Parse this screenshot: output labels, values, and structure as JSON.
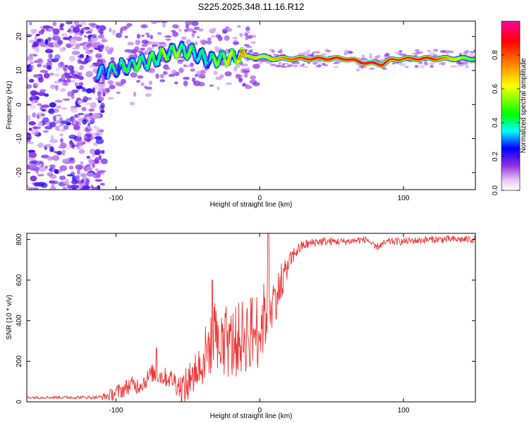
{
  "title": "S225.2025.348.11.16.R12",
  "chart_data": [
    {
      "type": "heatmap",
      "name": "spectrogram",
      "xlabel": "Height of straight line (km)",
      "ylabel": "Frequency (Hz)",
      "xlim": [
        -162,
        150
      ],
      "ylim": [
        -25,
        24.5
      ],
      "x_ticks": [
        -100,
        0,
        100
      ],
      "x_tick_labels": [
        "-100",
        "0",
        "100"
      ],
      "y_ticks": [
        -20,
        -10,
        0,
        10,
        20
      ],
      "y_tick_labels": [
        "-20",
        "-10",
        "0",
        "10",
        "20"
      ],
      "colorbar": {
        "label": "Normalized spectral amplitude",
        "range": [
          0,
          1
        ],
        "ticks": [
          0.0,
          0.2,
          0.4,
          0.6,
          0.8
        ],
        "tick_labels": [
          "0.0",
          "0.2",
          "0.4",
          "0.6",
          "0.8"
        ],
        "colors": [
          "#ffffff",
          "#e6c8f5",
          "#8a2be2",
          "#0000ff",
          "#00ffff",
          "#00ff00",
          "#ffff00",
          "#ff8000",
          "#ff0000",
          "#ff00a0"
        ]
      },
      "ridge": {
        "x": [
          -113,
          -105,
          -95,
          -85,
          -75,
          -65,
          -55,
          -45,
          -40,
          -35,
          -25,
          -15,
          -5,
          0,
          10,
          20,
          40,
          60,
          70,
          80,
          85,
          90,
          100,
          120,
          140,
          150
        ],
        "freq": [
          9,
          10,
          11,
          12,
          13,
          15,
          16,
          15,
          14,
          13,
          13.5,
          14,
          14,
          14,
          13.5,
          13.5,
          13.5,
          13.5,
          12.5,
          12,
          11.8,
          13,
          13.5,
          13.5,
          13.5,
          13.5
        ],
        "amplitude": [
          0.3,
          0.35,
          0.4,
          0.45,
          0.45,
          0.5,
          0.5,
          0.45,
          0.35,
          0.4,
          0.55,
          0.65,
          0.7,
          0.65,
          0.7,
          0.8,
          0.9,
          0.9,
          0.95,
          0.95,
          0.9,
          0.85,
          0.85,
          0.9,
          0.6,
          0.5
        ]
      },
      "noise_region_x": [
        -162,
        -112
      ],
      "noise_amplitude": 0.15
    },
    {
      "type": "line",
      "name": "snr",
      "xlabel": "Height of straight line (km)",
      "ylabel": "SNR (10 * v/v)",
      "xlim": [
        -162,
        150
      ],
      "ylim": [
        0,
        830
      ],
      "x_ticks": [
        -100,
        0,
        100
      ],
      "x_tick_labels": [
        "-100",
        "0",
        "100"
      ],
      "y_ticks": [
        0,
        200,
        400,
        600,
        800
      ],
      "y_tick_labels": [
        "0",
        "200",
        "400",
        "600",
        "800"
      ],
      "color": "#ee3333",
      "envelope": {
        "x": [
          -162,
          -112,
          -105,
          -95,
          -90,
          -85,
          -80,
          -75,
          -70,
          -60,
          -55,
          -50,
          -45,
          -40,
          -35,
          -30,
          -25,
          -20,
          -10,
          0,
          5,
          8,
          10,
          15,
          20,
          25,
          30,
          40,
          60,
          75,
          80,
          90,
          100,
          120,
          150
        ],
        "value": [
          22,
          22,
          30,
          60,
          85,
          80,
          100,
          140,
          130,
          110,
          70,
          80,
          150,
          200,
          280,
          250,
          300,
          280,
          330,
          360,
          450,
          480,
          500,
          580,
          680,
          740,
          770,
          790,
          790,
          800,
          760,
          790,
          790,
          800,
          800
        ]
      },
      "noise": {
        "x": [
          -162,
          -112,
          -100,
          -60,
          -40,
          -20,
          0,
          20,
          30,
          60,
          150
        ],
        "amplitude": [
          6,
          8,
          40,
          50,
          140,
          180,
          200,
          50,
          25,
          18,
          18
        ]
      },
      "peaks": [
        {
          "x": -72,
          "value": 265
        },
        {
          "x": -33,
          "value": 600
        },
        {
          "x": 6,
          "value": 830
        }
      ]
    }
  ]
}
